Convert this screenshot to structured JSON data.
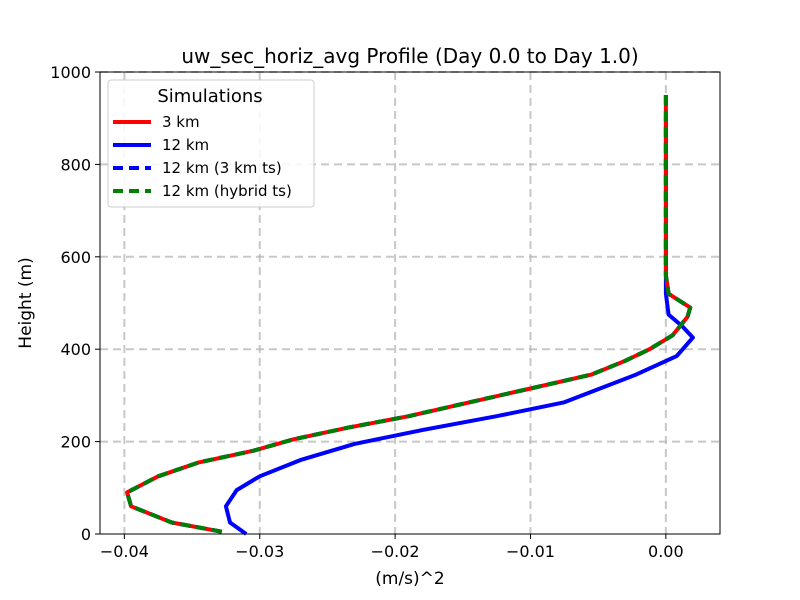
{
  "chart_data": {
    "type": "line",
    "title": "uw_sec_horiz_avg Profile (Day 0.0 to Day 1.0)",
    "xlabel": "(m/s)^2",
    "ylabel": "Height (m)",
    "xlim": [
      -0.0418,
      0.004
    ],
    "ylim": [
      0,
      1000
    ],
    "xticks": [
      -0.04,
      -0.03,
      -0.02,
      -0.01,
      0.0
    ],
    "xtick_labels": [
      "−0.04",
      "−0.03",
      "−0.02",
      "−0.01",
      "0.00"
    ],
    "yticks": [
      0,
      200,
      400,
      600,
      800,
      1000
    ],
    "ytick_labels": [
      "0",
      "200",
      "400",
      "600",
      "800",
      "1000"
    ],
    "grid": true,
    "legend": {
      "title": "Simulations",
      "position": "upper-left"
    },
    "series": [
      {
        "name": "3 km",
        "color": "#ff0000",
        "style": "solid",
        "x": [
          -0.0328,
          -0.0365,
          -0.0395,
          -0.0398,
          -0.0375,
          -0.0345,
          -0.0305,
          -0.0275,
          -0.0235,
          -0.019,
          -0.0145,
          -0.01,
          -0.0055,
          -0.003,
          -0.0012,
          0.0005,
          0.0016,
          0.0018,
          0.0002,
          0.0,
          0.0,
          0.0,
          0.0,
          0.0,
          0.0
        ],
        "y": [
          5,
          25,
          60,
          90,
          125,
          155,
          180,
          205,
          230,
          255,
          285,
          315,
          345,
          375,
          400,
          430,
          470,
          490,
          520,
          560,
          600,
          700,
          800,
          900,
          950
        ]
      },
      {
        "name": "12 km",
        "color": "#0000ff",
        "style": "solid",
        "x": [
          -0.031,
          -0.0322,
          -0.0325,
          -0.0317,
          -0.03,
          -0.027,
          -0.023,
          -0.018,
          -0.0125,
          -0.0075,
          -0.0022,
          0.0008,
          0.002,
          0.0012,
          0.0002,
          0.0,
          0.0,
          0.0,
          0.0,
          0.0
        ],
        "y": [
          0,
          25,
          60,
          95,
          125,
          160,
          195,
          225,
          255,
          285,
          345,
          385,
          425,
          450,
          475,
          520,
          600,
          700,
          800,
          900
        ]
      },
      {
        "name": "12 km (3 km ts)",
        "color": "#0000ff",
        "style": "dashed",
        "x": [
          -0.0328,
          -0.0365,
          -0.0395,
          -0.0398,
          -0.0375,
          -0.0345,
          -0.0305,
          -0.0275,
          -0.0235,
          -0.019,
          -0.0145,
          -0.01,
          -0.0055,
          -0.003,
          -0.0012,
          0.0005,
          0.0016,
          0.0018,
          0.0002,
          0.0,
          0.0,
          0.0,
          0.0,
          0.0,
          0.0
        ],
        "y": [
          5,
          25,
          60,
          90,
          125,
          155,
          180,
          205,
          230,
          255,
          285,
          315,
          345,
          375,
          400,
          430,
          470,
          490,
          520,
          560,
          600,
          700,
          800,
          900,
          950
        ]
      },
      {
        "name": "12 km (hybrid ts)",
        "color": "#008000",
        "style": "dashed",
        "x": [
          -0.0328,
          -0.0365,
          -0.0395,
          -0.0398,
          -0.0375,
          -0.0345,
          -0.0305,
          -0.0275,
          -0.0235,
          -0.019,
          -0.0145,
          -0.01,
          -0.0055,
          -0.003,
          -0.0012,
          0.0005,
          0.0016,
          0.0018,
          0.0002,
          0.0,
          0.0,
          0.0,
          0.0,
          0.0,
          0.0
        ],
        "y": [
          5,
          25,
          60,
          90,
          125,
          155,
          180,
          205,
          230,
          255,
          285,
          315,
          345,
          375,
          400,
          430,
          470,
          490,
          520,
          560,
          600,
          700,
          800,
          900,
          950
        ]
      }
    ]
  }
}
